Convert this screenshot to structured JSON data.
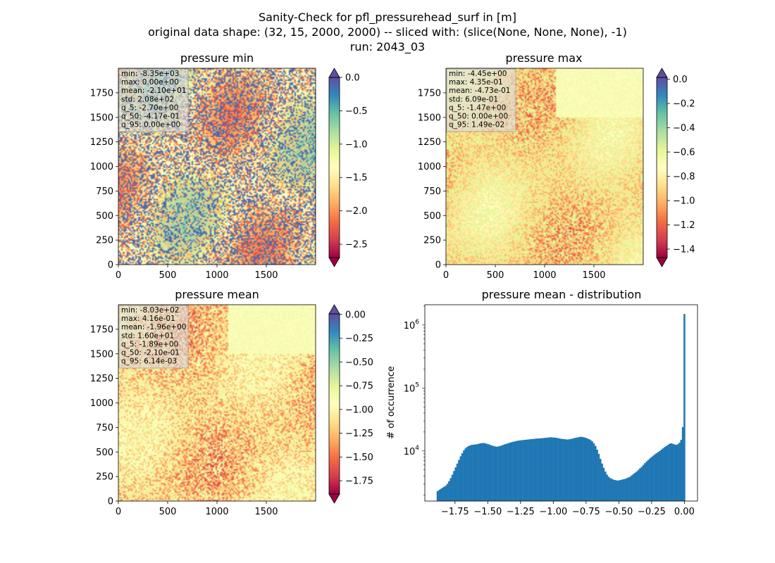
{
  "figure": {
    "title_line1": "Sanity-Check for pfl_pressurehead_surf in [m]",
    "title_line2": "original data shape: (32, 15, 2000, 2000) -- sliced with: (slice(None, None, None), -1)",
    "title_line3": "run: 2043_03"
  },
  "colors": {
    "spectral": [
      "#9e0142",
      "#d53e4f",
      "#f46d43",
      "#fdae61",
      "#fee08b",
      "#ffffbf",
      "#e6f598",
      "#abdda4",
      "#66c2a5",
      "#3288bd",
      "#5e4fa2"
    ],
    "histogram_bar": "#1f77b4"
  },
  "chart_data": [
    {
      "type": "heatmap",
      "title": "pressure min",
      "x_ticks": [
        "0",
        "500",
        "1000",
        "1500"
      ],
      "y_ticks": [
        "0",
        "250",
        "500",
        "750",
        "1000",
        "1250",
        "1500",
        "1750"
      ],
      "xlim": [
        0,
        2000
      ],
      "ylim": [
        0,
        2000
      ],
      "colormap": "Spectral",
      "colorbar": {
        "vmin": -2.7,
        "vmax": 0.0,
        "ticks": [
          "0.0",
          "−0.5",
          "−1.0",
          "−1.5",
          "−2.0",
          "−2.5"
        ],
        "tick_values": [
          0.0,
          -0.5,
          -1.0,
          -1.5,
          -2.0,
          -2.5
        ],
        "extend": "both"
      },
      "stats": [
        "min: -8.35e+03",
        "max: 0.00e+00",
        "mean: -2.10e+01",
        "std: 2.08e+02",
        "q_5: -2.70e+00",
        "q_50: -4.17e-01",
        "q_95: 0.00e+00"
      ]
    },
    {
      "type": "heatmap",
      "title": "pressure max",
      "x_ticks": [
        "0",
        "500",
        "1000",
        "1500"
      ],
      "y_ticks": [
        "0",
        "250",
        "500",
        "750",
        "1000",
        "1250",
        "1500",
        "1750"
      ],
      "xlim": [
        0,
        2000
      ],
      "ylim": [
        0,
        2000
      ],
      "colormap": "Spectral",
      "colorbar": {
        "vmin": -1.47,
        "vmax": 0.0149,
        "ticks": [
          "0.0",
          "−0.2",
          "−0.4",
          "−0.6",
          "−0.8",
          "−1.0",
          "−1.2",
          "−1.4"
        ],
        "tick_values": [
          0.0,
          -0.2,
          -0.4,
          -0.6,
          -0.8,
          -1.0,
          -1.2,
          -1.4
        ],
        "extend": "both"
      },
      "stats": [
        "min: -4.45e+00",
        "max: 4.35e-01",
        "mean: -4.73e-01",
        "std: 6.09e-01",
        "q_5: -1.47e+00",
        "q_50: 0.00e+00",
        "q_95: 1.49e-02"
      ]
    },
    {
      "type": "heatmap",
      "title": "pressure mean",
      "x_ticks": [
        "0",
        "500",
        "1000",
        "1500"
      ],
      "y_ticks": [
        "0",
        "250",
        "500",
        "750",
        "1000",
        "1250",
        "1500",
        "1750"
      ],
      "xlim": [
        0,
        2000
      ],
      "ylim": [
        0,
        2000
      ],
      "colormap": "Spectral",
      "colorbar": {
        "vmin": -1.89,
        "vmax": 0.00614,
        "ticks": [
          "0.00",
          "−0.25",
          "−0.50",
          "−0.75",
          "−1.00",
          "−1.25",
          "−1.50",
          "−1.75"
        ],
        "tick_values": [
          0.0,
          -0.25,
          -0.5,
          -0.75,
          -1.0,
          -1.25,
          -1.5,
          -1.75
        ],
        "extend": "both"
      },
      "stats": [
        "min: -8.03e+02",
        "max: 4.16e-01",
        "mean: -1.96e+00",
        "std: 1.60e+01",
        "q_5: -1.89e+00",
        "q_50: -2.10e-01",
        "q_95: 6.14e-03"
      ]
    },
    {
      "type": "bar",
      "title": "pressure mean - distribution",
      "ylabel": "# of occurrence",
      "x_range": [
        -1.89,
        0.006
      ],
      "xlim": [
        -1.98,
        0.1
      ],
      "y_scale": "log",
      "ylim": [
        1600,
        2100000
      ],
      "x_ticks": [
        "−1.75",
        "−1.50",
        "−1.25",
        "−1.00",
        "−0.75",
        "−0.50",
        "−0.25",
        "0.00"
      ],
      "x_tick_values": [
        -1.75,
        -1.5,
        -1.25,
        -1.0,
        -0.75,
        -0.5,
        -0.25,
        0.0
      ],
      "y_ticks": [
        {
          "value": 10000,
          "base": "10",
          "exp": "4"
        },
        {
          "value": 100000,
          "base": "10",
          "exp": "5"
        },
        {
          "value": 1000000,
          "base": "10",
          "exp": "6"
        }
      ],
      "counts": [
        2300,
        2400,
        2500,
        2600,
        2700,
        2800,
        3000,
        3300,
        3700,
        4200,
        4800,
        5500,
        6300,
        7200,
        8200,
        9200,
        10200,
        11000,
        11600,
        12000,
        12300,
        12500,
        12600,
        12700,
        12800,
        13000,
        13200,
        13300,
        13400,
        13200,
        13000,
        12800,
        12500,
        12200,
        12000,
        11800,
        11700,
        11800,
        12000,
        12200,
        12500,
        12800,
        13000,
        13300,
        13500,
        13800,
        14000,
        14200,
        14400,
        14600,
        14700,
        14800,
        14900,
        15000,
        15100,
        15200,
        15300,
        15400,
        15500,
        15600,
        15700,
        15800,
        15800,
        15900,
        16000,
        16100,
        16200,
        16300,
        16400,
        16500,
        16400,
        16300,
        16200,
        16000,
        15800,
        15600,
        15500,
        15400,
        15300,
        15200,
        15300,
        15500,
        15700,
        16000,
        16200,
        16400,
        16600,
        16800,
        16700,
        16500,
        16200,
        15800,
        15400,
        14900,
        14200,
        13200,
        12000,
        10500,
        9000,
        7500,
        6300,
        5400,
        4700,
        4200,
        3900,
        3700,
        3600,
        3500,
        3450,
        3400,
        3400,
        3450,
        3500,
        3550,
        3600,
        3700,
        3800,
        3900,
        4100,
        4300,
        4500,
        4700,
        5000,
        5300,
        5600,
        6000,
        6400,
        6800,
        7200,
        7600,
        8000,
        8400,
        8800,
        9200,
        9600,
        10000,
        10500,
        11000,
        11500,
        12000,
        12500,
        13000,
        13200,
        13000,
        12700,
        12500,
        12800,
        13500,
        15000,
        24000,
        1500000
      ]
    }
  ]
}
